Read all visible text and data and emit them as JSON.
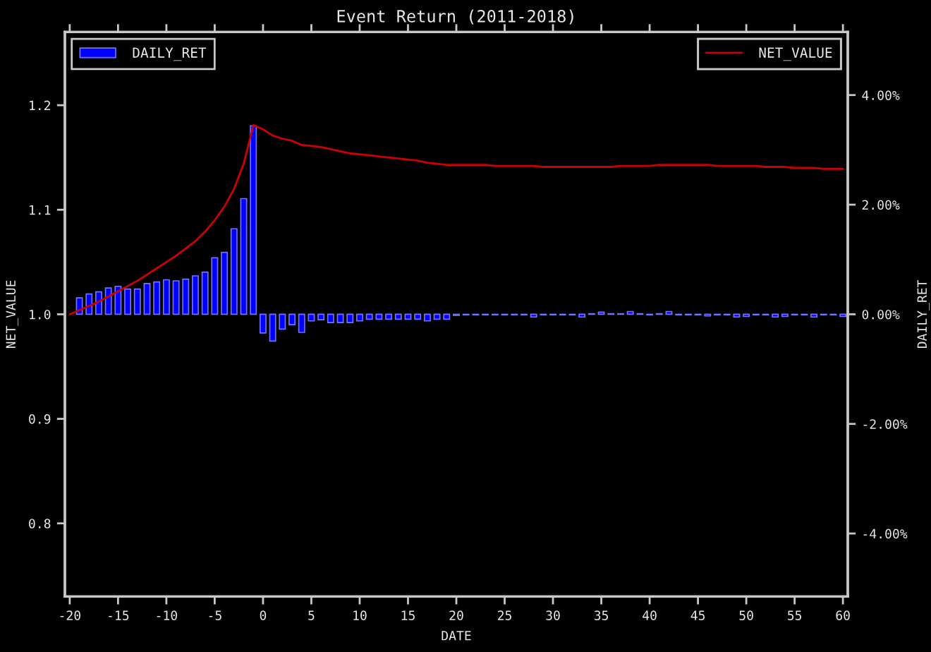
{
  "chart_data": {
    "type": "bar",
    "title": "Event Return (2011-2018)",
    "xlabel": "DATE",
    "ylabel": "NET_VALUE",
    "y2label": "DAILY_RET",
    "legend": "top",
    "xlim": [
      -20.5,
      60.5
    ],
    "xticks": [
      -20,
      -15,
      -10,
      -5,
      0,
      5,
      10,
      15,
      20,
      25,
      30,
      35,
      40,
      45,
      50,
      55,
      60
    ],
    "ylim": [
      0.73,
      1.27
    ],
    "yticks": [
      0.8,
      0.9,
      {
        "value": 1.0,
        "label": "1.0"
      },
      1.1,
      1.2
    ],
    "y2lim": [
      -5.15,
      5.15
    ],
    "y2ticks": [
      {
        "value": -4,
        "label": "-4.00%"
      },
      {
        "value": -2,
        "label": "-2.00%"
      },
      {
        "value": 0,
        "label": "0.00%"
      },
      {
        "value": 2,
        "label": "2.00%"
      },
      {
        "value": 4,
        "label": "4.00%"
      }
    ],
    "series": [
      {
        "name": "DAILY_RET",
        "axis": "y2",
        "color": "#0000ff",
        "x": [
          -19,
          -18,
          -17,
          -16,
          -15,
          -14,
          -13,
          -12,
          -11,
          -10,
          -9,
          -8,
          -7,
          -6,
          -5,
          -4,
          -3,
          -2,
          -1,
          0,
          1,
          2,
          3,
          4,
          5,
          6,
          7,
          8,
          9,
          10,
          11,
          12,
          13,
          14,
          15,
          16,
          17,
          18,
          19,
          20,
          21,
          22,
          23,
          24,
          25,
          26,
          27,
          28,
          29,
          30,
          31,
          32,
          33,
          34,
          35,
          36,
          37,
          38,
          39,
          40,
          41,
          42,
          43,
          44,
          45,
          46,
          47,
          48,
          49,
          50,
          51,
          52,
          53,
          54,
          55,
          56,
          57,
          58,
          59,
          60
        ],
        "values": [
          0.3,
          0.37,
          0.41,
          0.48,
          0.51,
          0.46,
          0.46,
          0.56,
          0.59,
          0.63,
          0.61,
          0.64,
          0.7,
          0.77,
          1.03,
          1.13,
          1.56,
          2.11,
          3.44,
          -0.34,
          -0.49,
          -0.27,
          -0.19,
          -0.33,
          -0.12,
          -0.1,
          -0.15,
          -0.15,
          -0.15,
          -0.12,
          -0.09,
          -0.09,
          -0.09,
          -0.09,
          -0.09,
          -0.09,
          -0.12,
          -0.09,
          -0.09,
          -0.02,
          -0.01,
          -0.01,
          -0.01,
          -0.01,
          -0.01,
          -0.01,
          -0.01,
          -0.05,
          -0.01,
          -0.01,
          -0.01,
          -0.01,
          -0.05,
          0.01,
          0.04,
          0.01,
          0.01,
          0.05,
          0.01,
          -0.01,
          0.01,
          0.05,
          -0.01,
          -0.01,
          -0.01,
          -0.03,
          -0.01,
          -0.01,
          -0.05,
          -0.04,
          -0.01,
          -0.01,
          -0.05,
          -0.04,
          -0.01,
          -0.01,
          -0.05,
          -0.01,
          -0.01,
          -0.04
        ]
      },
      {
        "name": "NET_VALUE",
        "type": "line",
        "axis": "y",
        "color": "#cc0000",
        "x": [
          -20,
          -19,
          -18,
          -17,
          -16,
          -15,
          -14,
          -13,
          -12,
          -11,
          -10,
          -9,
          -8,
          -7,
          -6,
          -5,
          -4,
          -3,
          -2,
          -1,
          0,
          1,
          2,
          3,
          4,
          5,
          6,
          7,
          8,
          9,
          10,
          11,
          12,
          13,
          14,
          15,
          16,
          17,
          18,
          19,
          20,
          21,
          22,
          23,
          24,
          25,
          26,
          27,
          28,
          29,
          30,
          31,
          32,
          33,
          34,
          35,
          36,
          37,
          38,
          39,
          40,
          41,
          42,
          43,
          44,
          45,
          46,
          47,
          48,
          49,
          50,
          51,
          52,
          53,
          54,
          55,
          56,
          57,
          58,
          59,
          60
        ],
        "values": [
          1.0,
          1.004,
          1.008,
          1.012,
          1.017,
          1.022,
          1.027,
          1.032,
          1.038,
          1.044,
          1.05,
          1.056,
          1.063,
          1.07,
          1.079,
          1.09,
          1.103,
          1.12,
          1.144,
          1.181,
          1.177,
          1.171,
          1.168,
          1.166,
          1.162,
          1.161,
          1.16,
          1.158,
          1.156,
          1.154,
          1.153,
          1.152,
          1.151,
          1.15,
          1.149,
          1.148,
          1.147,
          1.145,
          1.144,
          1.143,
          1.143,
          1.143,
          1.143,
          1.143,
          1.142,
          1.142,
          1.142,
          1.142,
          1.142,
          1.141,
          1.141,
          1.141,
          1.141,
          1.141,
          1.141,
          1.141,
          1.141,
          1.142,
          1.142,
          1.142,
          1.142,
          1.143,
          1.143,
          1.143,
          1.143,
          1.143,
          1.143,
          1.142,
          1.142,
          1.142,
          1.142,
          1.142,
          1.141,
          1.141,
          1.141,
          1.14,
          1.14,
          1.14,
          1.139,
          1.139,
          1.139
        ]
      }
    ]
  }
}
